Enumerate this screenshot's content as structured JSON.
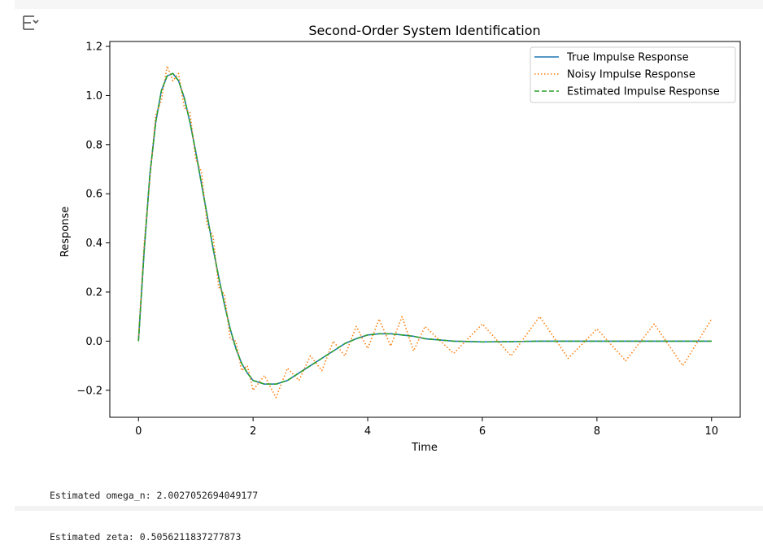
{
  "toolbar": {
    "toggle_icon": "output-collapse-icon"
  },
  "output": {
    "lines": [
      "Estimated omega_n: 2.0027052694049177",
      "Estimated zeta: 0.5056211837277873"
    ]
  },
  "chart_data": {
    "type": "line",
    "title": "Second-Order System Identification",
    "xlabel": "Time",
    "ylabel": "Response",
    "xlim": [
      -0.5,
      10.5
    ],
    "ylim": [
      -0.31,
      1.22
    ],
    "xticks": [
      0,
      2,
      4,
      6,
      8,
      10
    ],
    "xtick_labels": [
      "0",
      "2",
      "4",
      "6",
      "8",
      "10"
    ],
    "yticks": [
      -0.2,
      0.0,
      0.2,
      0.4,
      0.6,
      0.8,
      1.0,
      1.2
    ],
    "ytick_labels": [
      "−0.2",
      "0.0",
      "0.2",
      "0.4",
      "0.6",
      "0.8",
      "1.0",
      "1.2"
    ],
    "grid": false,
    "legend_position": "top-right",
    "series": [
      {
        "name": "True Impulse Response",
        "color": "#1f77b4",
        "style": "solid",
        "x": [
          0,
          0.1,
          0.2,
          0.3,
          0.4,
          0.5,
          0.6,
          0.7,
          0.8,
          0.9,
          1.0,
          1.1,
          1.2,
          1.3,
          1.4,
          1.5,
          1.6,
          1.7,
          1.8,
          1.9,
          2.0,
          2.2,
          2.4,
          2.6,
          2.8,
          3.0,
          3.2,
          3.4,
          3.6,
          3.8,
          4.0,
          4.2,
          4.4,
          4.6,
          4.8,
          5.0,
          5.5,
          6.0,
          6.5,
          7.0,
          7.5,
          8.0,
          8.5,
          9.0,
          9.5,
          10.0
        ],
        "y": [
          0.0,
          0.37,
          0.68,
          0.89,
          1.02,
          1.08,
          1.09,
          1.06,
          0.99,
          0.89,
          0.77,
          0.64,
          0.51,
          0.38,
          0.26,
          0.15,
          0.05,
          -0.03,
          -0.09,
          -0.13,
          -0.16,
          -0.175,
          -0.175,
          -0.16,
          -0.13,
          -0.1,
          -0.07,
          -0.04,
          -0.01,
          0.01,
          0.025,
          0.03,
          0.03,
          0.025,
          0.02,
          0.01,
          0.0,
          -0.003,
          -0.002,
          0.0,
          0.0,
          0.0,
          0.0,
          0.0,
          0.0,
          0.0
        ]
      },
      {
        "name": "Noisy Impulse Response",
        "color": "#ff7f0e",
        "style": "dotted",
        "x": [
          0,
          0.1,
          0.2,
          0.3,
          0.4,
          0.5,
          0.6,
          0.7,
          0.8,
          0.9,
          1.0,
          1.1,
          1.2,
          1.3,
          1.4,
          1.5,
          1.6,
          1.7,
          1.8,
          1.9,
          2.0,
          2.2,
          2.4,
          2.6,
          2.8,
          3.0,
          3.2,
          3.4,
          3.6,
          3.8,
          4.0,
          4.2,
          4.4,
          4.6,
          4.8,
          5.0,
          5.5,
          6.0,
          6.5,
          7.0,
          7.5,
          8.0,
          8.5,
          9.0,
          9.5,
          10.0
        ],
        "y": [
          0.01,
          0.4,
          0.66,
          0.92,
          0.98,
          1.12,
          1.06,
          1.09,
          0.95,
          0.93,
          0.74,
          0.69,
          0.47,
          0.43,
          0.22,
          0.19,
          0.01,
          0.0,
          -0.12,
          -0.1,
          -0.2,
          -0.14,
          -0.23,
          -0.11,
          -0.16,
          -0.06,
          -0.12,
          0.0,
          -0.06,
          0.06,
          -0.03,
          0.09,
          -0.02,
          0.1,
          -0.04,
          0.06,
          -0.05,
          0.07,
          -0.06,
          0.1,
          -0.07,
          0.05,
          -0.08,
          0.07,
          -0.1,
          0.09
        ]
      },
      {
        "name": "Estimated Impulse Response",
        "color": "#2ca02c",
        "style": "dashed",
        "x": [
          0,
          0.1,
          0.2,
          0.3,
          0.4,
          0.5,
          0.6,
          0.7,
          0.8,
          0.9,
          1.0,
          1.1,
          1.2,
          1.3,
          1.4,
          1.5,
          1.6,
          1.7,
          1.8,
          1.9,
          2.0,
          2.2,
          2.4,
          2.6,
          2.8,
          3.0,
          3.2,
          3.4,
          3.6,
          3.8,
          4.0,
          4.2,
          4.4,
          4.6,
          4.8,
          5.0,
          5.5,
          6.0,
          6.5,
          7.0,
          7.5,
          8.0,
          8.5,
          9.0,
          9.5,
          10.0
        ],
        "y": [
          0.0,
          0.37,
          0.68,
          0.89,
          1.02,
          1.08,
          1.09,
          1.06,
          0.99,
          0.89,
          0.77,
          0.64,
          0.51,
          0.38,
          0.26,
          0.15,
          0.05,
          -0.03,
          -0.09,
          -0.13,
          -0.16,
          -0.175,
          -0.175,
          -0.16,
          -0.13,
          -0.1,
          -0.07,
          -0.04,
          -0.01,
          0.01,
          0.025,
          0.03,
          0.03,
          0.025,
          0.02,
          0.01,
          0.0,
          -0.003,
          -0.002,
          0.0,
          0.0,
          0.0,
          0.0,
          0.0,
          0.0,
          0.0
        ]
      }
    ]
  }
}
